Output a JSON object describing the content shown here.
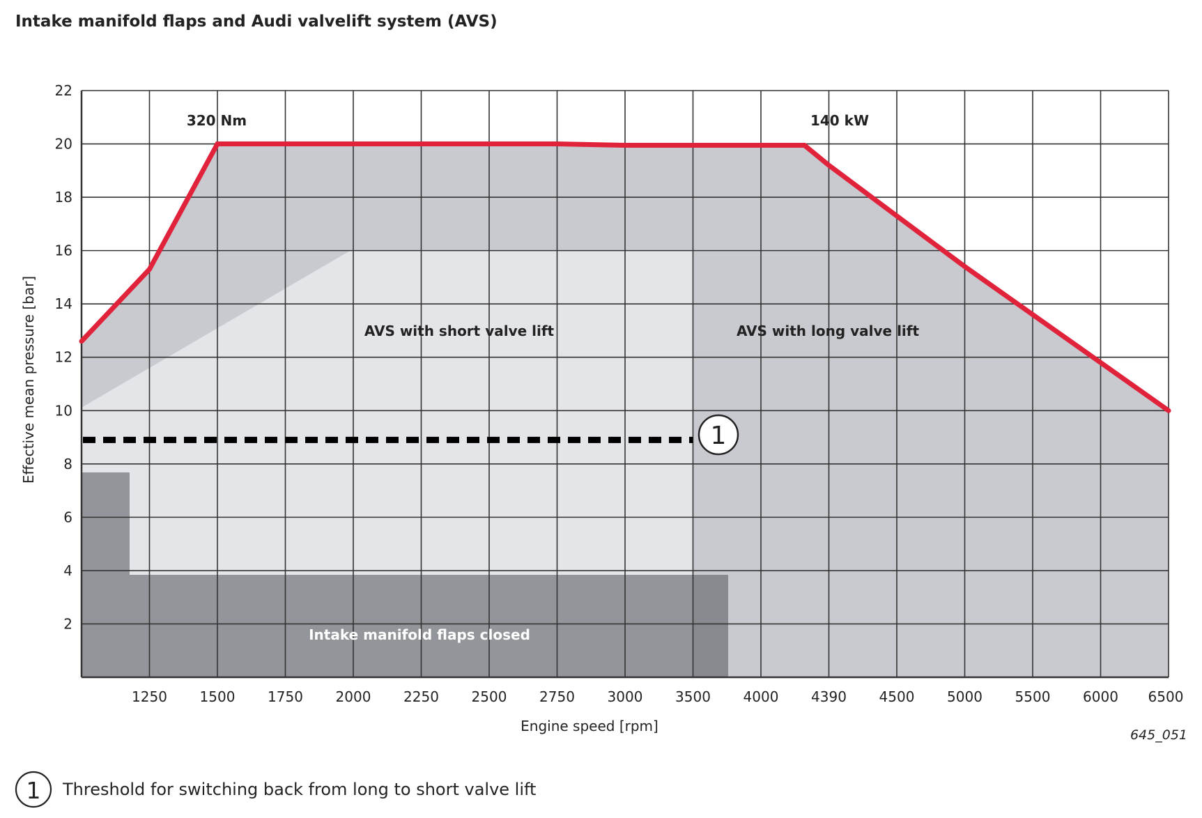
{
  "title": "Intake manifold flaps and Audi valvelift system (AVS)",
  "figure_id": "645_051",
  "legend": {
    "marker": "1",
    "text": "Threshold for switching back from long to short valve lift"
  },
  "colors": {
    "full_load_curve": "#e0223a",
    "region_light": "#e4e5e9",
    "region_medium": "#c8cacf",
    "region_dark": "#929599",
    "threshold_line": "#000000",
    "grid": "#333333"
  },
  "chart_data": {
    "type": "line",
    "title": "Intake manifold flaps and Audi valvelift system (AVS)",
    "xlabel": "Engine speed [rpm]",
    "ylabel": "Effective mean pressure [bar]",
    "x_tick_labels": [
      "1250",
      "1500",
      "1750",
      "2000",
      "2250",
      "2500",
      "2750",
      "3000",
      "3500",
      "4000",
      "4390",
      "4500",
      "5000",
      "5500",
      "6000",
      "6500"
    ],
    "y_ticks": [
      2,
      4,
      6,
      8,
      10,
      12,
      14,
      16,
      18,
      20,
      22
    ],
    "ylim": [
      0,
      22
    ],
    "grid": true,
    "series": [
      {
        "x": [
          "1000",
          "1250",
          "1500",
          "1750",
          "2000",
          "2250",
          "2500",
          "2750",
          "3000",
          "3500",
          "4000",
          "4250",
          "4390",
          "4500",
          "5000",
          "5500",
          "6000",
          "6500"
        ],
        "values": [
          12.6,
          15.3,
          20,
          20,
          20,
          20,
          20,
          20,
          19.95,
          19.95,
          19.95,
          19.95,
          19.2,
          17.3,
          15.4,
          13.6,
          11.8,
          10.0
        ]
      }
    ],
    "annotations": {
      "torque": "320 Nm",
      "power": "140 kW",
      "short_lift": "AVS with short valve lift",
      "long_lift": "AVS with long valve lift",
      "flaps_closed": "Intake manifold flaps closed",
      "threshold_marker": "1"
    },
    "threshold": {
      "y": 8.9,
      "x_end": "3500"
    }
  }
}
